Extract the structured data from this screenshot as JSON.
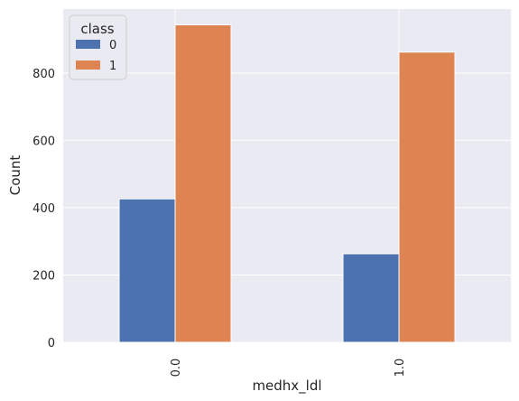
{
  "chart_data": {
    "type": "bar",
    "xlabel": "medhx_ldl",
    "ylabel": "Count",
    "categories": [
      "0.0",
      "1.0"
    ],
    "series": [
      {
        "name": "0",
        "values": [
          426,
          263
        ],
        "color": "#4c72b0"
      },
      {
        "name": "1",
        "values": [
          943,
          862
        ],
        "color": "#dd8452"
      }
    ],
    "legend": {
      "title": "class",
      "placement": "top-left"
    },
    "ylim": [
      0,
      990
    ],
    "yticks": [
      0,
      200,
      400,
      600,
      800
    ],
    "grid": true,
    "background": "#eaeaf2",
    "grid_color": "#ffffff"
  }
}
